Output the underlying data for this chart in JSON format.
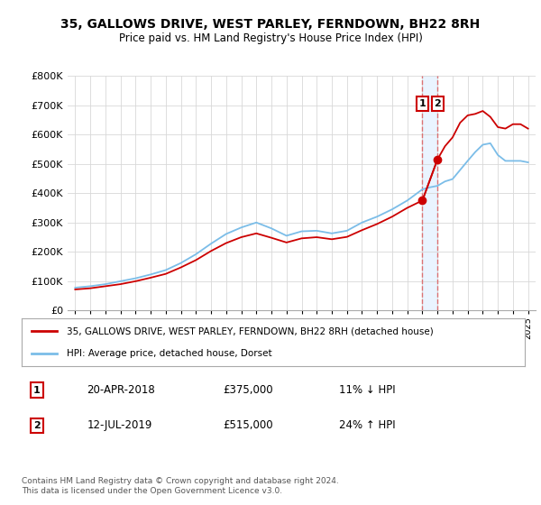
{
  "title": "35, GALLOWS DRIVE, WEST PARLEY, FERNDOWN, BH22 8RH",
  "subtitle": "Price paid vs. HM Land Registry's House Price Index (HPI)",
  "legend_line1": "35, GALLOWS DRIVE, WEST PARLEY, FERNDOWN, BH22 8RH (detached house)",
  "legend_line2": "HPI: Average price, detached house, Dorset",
  "sale1_label": "1",
  "sale1_date": "20-APR-2018",
  "sale1_price": "£375,000",
  "sale1_hpi": "11% ↓ HPI",
  "sale2_label": "2",
  "sale2_date": "12-JUL-2019",
  "sale2_price": "£515,000",
  "sale2_hpi": "24% ↑ HPI",
  "footer": "Contains HM Land Registry data © Crown copyright and database right 2024.\nThis data is licensed under the Open Government Licence v3.0.",
  "hpi_color": "#7bbde8",
  "price_color": "#cc0000",
  "sale_marker_color": "#cc0000",
  "dashed_line_color": "#dd6666",
  "shade_color": "#ddeeff",
  "ylim": [
    0,
    800000
  ],
  "yticks": [
    0,
    100000,
    200000,
    300000,
    400000,
    500000,
    600000,
    700000,
    800000
  ],
  "hpi_years": [
    1995,
    1996,
    1997,
    1998,
    1999,
    2000,
    2001,
    2002,
    2003,
    2004,
    2005,
    2006,
    2007,
    2008,
    2009,
    2010,
    2011,
    2012,
    2013,
    2014,
    2015,
    2016,
    2017,
    2018,
    2018.5,
    2019,
    2019.5,
    2020,
    2021,
    2021.5,
    2022,
    2022.5,
    2023,
    2023.5,
    2024,
    2024.5,
    2025
  ],
  "hpi_values": [
    78000,
    83000,
    90000,
    100000,
    110000,
    123000,
    138000,
    162000,
    192000,
    228000,
    261000,
    283000,
    300000,
    280000,
    255000,
    270000,
    272000,
    263000,
    272000,
    300000,
    320000,
    345000,
    375000,
    413000,
    420000,
    425000,
    440000,
    448000,
    510000,
    540000,
    565000,
    570000,
    530000,
    510000,
    510000,
    510000,
    505000
  ],
  "price_years": [
    1995,
    1996,
    1997,
    1998,
    1999,
    2000,
    2001,
    2002,
    2003,
    2004,
    2005,
    2006,
    2007,
    2008,
    2009,
    2010,
    2011,
    2012,
    2013,
    2014,
    2015,
    2016,
    2017,
    2018,
    2019,
    2019.5,
    2020,
    2020.5,
    2021,
    2021.5,
    2022,
    2022.5,
    2023,
    2023.5,
    2024,
    2024.5,
    2025
  ],
  "price_values": [
    72000,
    76000,
    83000,
    90000,
    100000,
    112000,
    125000,
    147000,
    172000,
    203000,
    230000,
    250000,
    263000,
    248000,
    232000,
    246000,
    250000,
    243000,
    251000,
    274000,
    295000,
    320000,
    350000,
    375000,
    515000,
    560000,
    590000,
    640000,
    665000,
    670000,
    680000,
    660000,
    625000,
    620000,
    635000,
    635000,
    620000
  ],
  "sale1_x": 2018,
  "sale1_y": 375000,
  "sale2_x": 2019,
  "sale2_y": 515000,
  "xlim_left": 1994.5,
  "xlim_right": 2025.5
}
